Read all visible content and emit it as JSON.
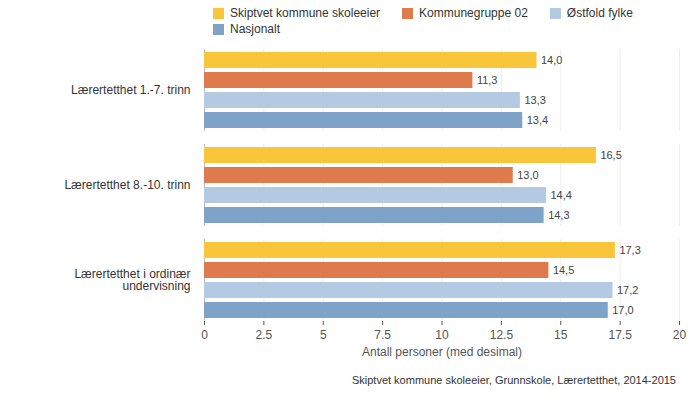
{
  "chart_data": {
    "type": "bar",
    "orientation": "horizontal",
    "categories": [
      "Lærertetthet 1.-7. trinn",
      "Lærertetthet 8.-10. trinn",
      "Lærertetthet i ordinær undervisning"
    ],
    "series": [
      {
        "name": "Skiptvet kommune skoleeier",
        "color": "#f9c53a",
        "values": [
          14.0,
          16.5,
          17.3
        ],
        "value_labels": [
          "14,0",
          "16,5",
          "17,3"
        ]
      },
      {
        "name": "Kommunegruppe 02",
        "color": "#df7a4c",
        "values": [
          11.3,
          13.0,
          14.5
        ],
        "value_labels": [
          "11,3",
          "13,0",
          "14,5"
        ]
      },
      {
        "name": "Østfold fylke",
        "color": "#b4c9e2",
        "values": [
          13.3,
          14.4,
          17.2
        ],
        "value_labels": [
          "13,3",
          "14,4",
          "17,2"
        ]
      },
      {
        "name": "Nasjonalt",
        "color": "#7fa2c8",
        "values": [
          13.4,
          14.3,
          17.0
        ],
        "value_labels": [
          "13,4",
          "14,3",
          "17,0"
        ]
      }
    ],
    "xlabel": "Antall personer (med desimal)",
    "xlim": [
      0,
      20
    ],
    "xticks": [
      0,
      2.5,
      5,
      7.5,
      10,
      12.5,
      15,
      17.5,
      20
    ],
    "grid": true,
    "legend": "top",
    "data_labels": true,
    "caption": "Skiptvet kommune skoleeier, Grunnskole, Lærertetthet, 2014-2015"
  }
}
